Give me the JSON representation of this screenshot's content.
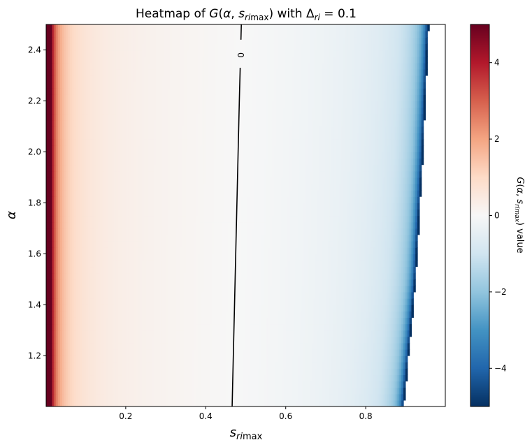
{
  "chart_data": {
    "type": "heatmap",
    "title": {
      "prefix": "Heatmap of ",
      "func": "G",
      "args_open": "(",
      "arg1": "α",
      "sep": ", ",
      "arg2": "s",
      "arg2_sub": "ri",
      "arg2_sub2": "max",
      "args_close": ")",
      "middle": " with ",
      "delta": "Δ",
      "delta_sub": "ri",
      "equals": " = 0.1"
    },
    "xlabel": {
      "symbol": "s",
      "sub": "ri",
      "sub2": "max"
    },
    "ylabel": "α",
    "colorbar_label": {
      "func": "G",
      "args_open": "(",
      "arg1": "α",
      "sep": ", ",
      "arg2": "s",
      "arg2_sub": "rimax",
      "args_close": ")",
      "suffix": " value"
    },
    "xlim": [
      0.001,
      0.999
    ],
    "ylim": [
      1.001,
      2.5
    ],
    "x_ticks": [
      0.2,
      0.4,
      0.6,
      0.8
    ],
    "x_tick_labels": [
      "0.2",
      "0.4",
      "0.6",
      "0.8"
    ],
    "y_ticks": [
      1.2,
      1.4,
      1.6,
      1.8,
      2.0,
      2.2,
      2.4
    ],
    "y_tick_labels": [
      "1.2",
      "1.4",
      "1.6",
      "1.8",
      "2.0",
      "2.2",
      "2.4"
    ],
    "color_range": [
      -5,
      5
    ],
    "colormap": "RdBu_r",
    "colorbar_ticks": [
      4,
      2,
      0,
      -2,
      -4
    ],
    "colorbar_tick_labels": [
      "4",
      "2",
      "0",
      "−2",
      "−4"
    ],
    "contour": {
      "level_label": "0",
      "points": [
        {
          "alpha": 1.001,
          "s": 0.466
        },
        {
          "alpha": 1.4,
          "s": 0.472
        },
        {
          "alpha": 1.8,
          "s": 0.478
        },
        {
          "alpha": 2.2,
          "s": 0.484
        },
        {
          "alpha": 2.5,
          "s": 0.489
        }
      ]
    },
    "defined_region_edge": [
      {
        "alpha": 1.0,
        "s": 0.895
      },
      {
        "alpha": 1.5,
        "s": 0.925
      },
      {
        "alpha": 2.0,
        "s": 0.943
      },
      {
        "alpha": 2.5,
        "s": 0.957
      }
    ]
  }
}
